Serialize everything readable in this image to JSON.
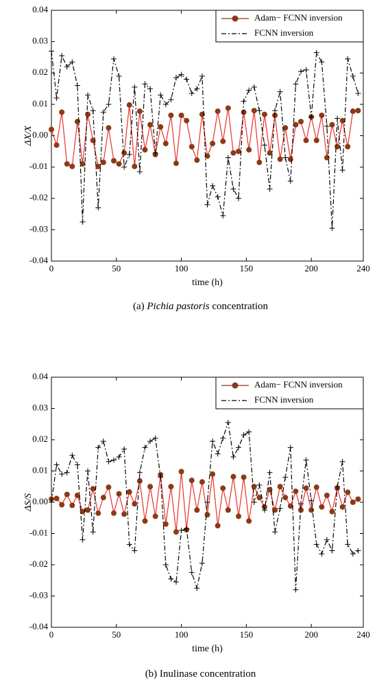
{
  "chart_data": [
    {
      "type": "line",
      "x_label": "time (h)",
      "y_label": "ΔX/X",
      "caption_prefix": "(a) ",
      "caption_italic": "Pichia pastoris",
      "caption_suffix": " concentration",
      "x": [
        0,
        4,
        8,
        12,
        16,
        20,
        24,
        28,
        32,
        36,
        40,
        44,
        48,
        52,
        56,
        60,
        64,
        68,
        72,
        76,
        80,
        84,
        88,
        92,
        96,
        100,
        104,
        108,
        112,
        116,
        120,
        124,
        128,
        132,
        136,
        140,
        144,
        148,
        152,
        156,
        160,
        164,
        168,
        172,
        176,
        180,
        184,
        188,
        192,
        196,
        200,
        204,
        208,
        212,
        216,
        220,
        224,
        228,
        232,
        236
      ],
      "xlim": [
        0,
        240
      ],
      "xticks": [
        0,
        50,
        100,
        150,
        200,
        240
      ],
      "ylim": [
        -0.04,
        0.04
      ],
      "yticks": [
        -0.04,
        -0.03,
        -0.02,
        -0.01,
        {
          "value": 0,
          "label": "0.00"
        },
        0.01,
        0.02,
        0.03,
        0.04
      ],
      "legend": "upper right",
      "series": [
        {
          "name": "Adam− FCNN inversion",
          "color": "#e8302a",
          "marker_color": "#8b3a17",
          "style": "solid",
          "values": [
            0.002,
            -0.003,
            0.0075,
            -0.009,
            -0.0098,
            0.0045,
            -0.009,
            0.0068,
            -0.0015,
            -0.0098,
            -0.0085,
            0.0025,
            -0.008,
            -0.009,
            -0.0055,
            0.0098,
            -0.0098,
            0.0078,
            -0.0045,
            0.0035,
            -0.006,
            0.0028,
            -0.0025,
            0.0065,
            -0.0088,
            0.0065,
            0.0048,
            -0.0035,
            -0.0078,
            0.0068,
            -0.0065,
            -0.0025,
            0.0078,
            -0.0018,
            0.0088,
            -0.0055,
            -0.005,
            0.0075,
            -0.0045,
            0.008,
            -0.0085,
            0.0068,
            -0.0055,
            0.0065,
            -0.0075,
            0.0025,
            -0.0075,
            0.0035,
            0.0045,
            -0.0015,
            0.006,
            -0.0015,
            0.0065,
            -0.007,
            0.0035,
            -0.0035,
            0.0048,
            -0.0035,
            0.0078,
            0.008
          ]
        },
        {
          "name": "FCNN inversion",
          "color": "#000000",
          "marker_color": "#000000",
          "style": "dashdot",
          "values": [
            0.027,
            0.012,
            0.0255,
            0.022,
            0.0235,
            0.016,
            -0.0275,
            0.013,
            0.008,
            -0.023,
            0.0075,
            0.01,
            0.0245,
            0.019,
            -0.01,
            -0.006,
            0.0155,
            -0.0115,
            0.0165,
            0.015,
            -0.0055,
            0.013,
            0.01,
            0.0115,
            0.0185,
            0.0195,
            0.018,
            0.0135,
            0.015,
            0.019,
            -0.022,
            -0.016,
            -0.0195,
            -0.0255,
            -0.007,
            -0.017,
            -0.02,
            0.011,
            0.0145,
            0.0155,
            0.008,
            -0.003,
            -0.017,
            0.008,
            0.014,
            -0.007,
            -0.0145,
            0.0165,
            0.0205,
            0.021,
            0.006,
            0.0265,
            0.0235,
            0.003,
            -0.0295,
            0.0055,
            -0.011,
            0.0245,
            0.019,
            0.0135
          ]
        }
      ]
    },
    {
      "type": "line",
      "x_label": "time (h)",
      "y_label": "ΔS/S",
      "caption_prefix": "(b) Inulinase concentration",
      "x": [
        0,
        4,
        8,
        12,
        16,
        20,
        24,
        28,
        32,
        36,
        40,
        44,
        48,
        52,
        56,
        60,
        64,
        68,
        72,
        76,
        80,
        84,
        88,
        92,
        96,
        100,
        104,
        108,
        112,
        116,
        120,
        124,
        128,
        132,
        136,
        140,
        144,
        148,
        152,
        156,
        160,
        164,
        168,
        172,
        176,
        180,
        184,
        188,
        192,
        196,
        200,
        204,
        208,
        212,
        216,
        220,
        224,
        228,
        232,
        236
      ],
      "xlim": [
        0,
        240
      ],
      "xticks": [
        0,
        50,
        100,
        150,
        200,
        240
      ],
      "ylim": [
        -0.04,
        0.04
      ],
      "yticks": [
        -0.04,
        -0.03,
        -0.02,
        -0.01,
        {
          "value": 0,
          "label": "0.00"
        },
        0.01,
        0.02,
        0.03,
        0.04
      ],
      "legend": "upper right",
      "series": [
        {
          "name": "Adam− FCNN inversion",
          "color": "#e8302a",
          "marker_color": "#8b3a17",
          "style": "solid",
          "values": [
            0.001,
            0.0012,
            -0.0008,
            0.0025,
            -0.001,
            0.0022,
            -0.003,
            -0.0025,
            0.0043,
            -0.0035,
            0.0015,
            0.0048,
            -0.0035,
            0.0027,
            -0.0038,
            0.0033,
            -0.0005,
            0.0068,
            -0.006,
            0.005,
            -0.0045,
            0.0088,
            -0.007,
            0.005,
            -0.0095,
            0.0098,
            -0.0088,
            0.007,
            -0.0025,
            0.0065,
            -0.004,
            0.009,
            -0.0075,
            0.0045,
            -0.0025,
            0.0082,
            -0.0045,
            0.008,
            -0.006,
            0.005,
            0.0015,
            -0.0015,
            0.004,
            -0.0025,
            0.005,
            0.0015,
            -0.0012,
            0.0035,
            -0.0025,
            0.0045,
            -0.0025,
            0.0048,
            -0.0015,
            0.0022,
            -0.003,
            0.0045,
            -0.0015,
            0.0032,
            0.0,
            0.001
          ]
        },
        {
          "name": "FCNN inversion",
          "color": "#000000",
          "marker_color": "#000000",
          "style": "dashdot",
          "values": [
            0.0,
            0.012,
            0.009,
            0.0095,
            0.015,
            0.012,
            -0.012,
            0.01,
            -0.0095,
            0.0175,
            0.0195,
            0.013,
            0.0135,
            0.0145,
            0.017,
            -0.0135,
            -0.0155,
            0.0095,
            0.0175,
            0.0195,
            0.0205,
            0.008,
            -0.02,
            -0.0245,
            -0.0255,
            -0.009,
            -0.0085,
            -0.0225,
            -0.0275,
            -0.0195,
            0.0,
            0.0195,
            0.0155,
            0.0205,
            0.0255,
            0.0145,
            0.0175,
            0.0215,
            0.0225,
            0.0,
            0.0055,
            -0.0025,
            0.0095,
            -0.0095,
            -0.002,
            0.008,
            0.0175,
            -0.028,
            -0.0005,
            0.0135,
            0.0005,
            -0.0135,
            -0.0165,
            -0.012,
            -0.0155,
            0.005,
            0.013,
            -0.0135,
            -0.0165,
            -0.0155
          ]
        }
      ]
    }
  ]
}
